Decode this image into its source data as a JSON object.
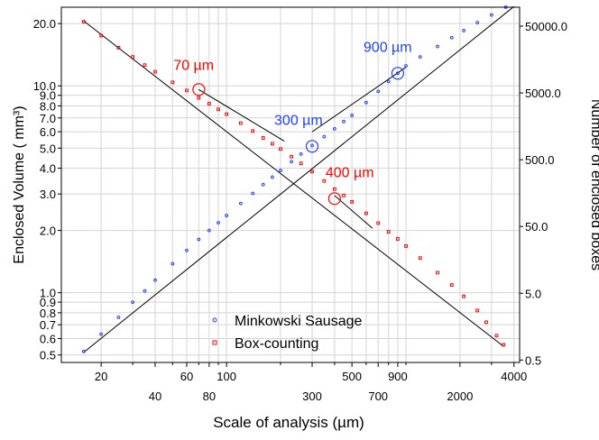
{
  "chart_data": {
    "type": "scatter",
    "xlabel": "Scale of analysis (µm)",
    "ylabel": "Enclosed Volume ( mm³)",
    "ylabel_right": "Number of enclosed boxes",
    "x_scale": "log",
    "y_scale": "log",
    "xlim": [
      12,
      4300
    ],
    "ylim": [
      0.46,
      24
    ],
    "y2lim": [
      0.46,
      96000
    ],
    "grid": true,
    "legend_position": "bottom-center",
    "x_ticks_top": [
      20,
      60,
      100,
      500,
      900,
      4000
    ],
    "x_ticks_bottom": [
      40,
      80,
      300,
      700,
      2000
    ],
    "x_minor_ticks": [
      30,
      50,
      70,
      90,
      200,
      400,
      600,
      800,
      1000,
      3000
    ],
    "x_gridlines": [
      20,
      30,
      40,
      50,
      60,
      70,
      80,
      90,
      100,
      200,
      300,
      400,
      500,
      600,
      700,
      800,
      900,
      1000,
      2000,
      3000,
      4000
    ],
    "y_ticks": [
      0.5,
      0.6,
      0.7,
      0.8,
      0.9,
      1.0,
      2.0,
      3.0,
      4.0,
      5.0,
      6.0,
      7.0,
      8.0,
      9.0,
      10.0,
      20.0
    ],
    "y_tick_labels": [
      "0.5",
      "0.6",
      "0.7",
      "0.8",
      "0.9",
      "1.0",
      "2.0",
      "3.0",
      "4.0",
      "5.0",
      "6.0",
      "7.0",
      "8.0",
      "9.0",
      "10.0",
      "20.0"
    ],
    "y2_ticks": [
      0.5,
      5.0,
      50.0,
      500.0,
      5000.0,
      50000.0
    ],
    "y2_tick_labels": [
      "0.5",
      "5.0",
      "50.0",
      "500.0",
      "5000.0",
      "50000.0"
    ],
    "series": [
      {
        "name": "Minkowski Sausage",
        "color": "#1f3fff",
        "marker": "circle",
        "axis": "left",
        "x": [
          16,
          20,
          25,
          30,
          35,
          40,
          50,
          60,
          70,
          80,
          90,
          100,
          120,
          140,
          160,
          180,
          200,
          230,
          260,
          300,
          350,
          400,
          450,
          500,
          600,
          700,
          800,
          900,
          1000,
          1200,
          1500,
          1800,
          2100,
          2500,
          3000,
          3600
        ],
        "y": [
          0.52,
          0.63,
          0.76,
          0.9,
          1.02,
          1.15,
          1.38,
          1.6,
          1.81,
          2.0,
          2.18,
          2.36,
          2.7,
          3.02,
          3.33,
          3.62,
          3.9,
          4.3,
          4.68,
          5.15,
          5.68,
          6.2,
          6.72,
          7.2,
          8.3,
          9.4,
          10.5,
          11.5,
          12.5,
          13.8,
          15.5,
          17.1,
          18.5,
          20.2,
          22.0,
          24.0
        ]
      },
      {
        "name": "Box-counting",
        "color": "#ff0000",
        "marker": "square",
        "axis": "left",
        "x": [
          16,
          20,
          25,
          30,
          35,
          40,
          50,
          60,
          70,
          80,
          90,
          100,
          120,
          140,
          160,
          180,
          200,
          230,
          260,
          300,
          350,
          400,
          450,
          500,
          600,
          700,
          800,
          900,
          1000,
          1200,
          1500,
          1800,
          2100,
          2500,
          2800,
          3200,
          3500
        ],
        "y": [
          20.4,
          17.5,
          15.3,
          13.8,
          12.6,
          11.7,
          10.4,
          9.5,
          8.75,
          8.2,
          7.7,
          7.3,
          6.6,
          6.05,
          5.6,
          5.25,
          4.95,
          4.55,
          4.22,
          3.85,
          3.47,
          3.17,
          2.95,
          2.75,
          2.42,
          2.17,
          1.97,
          1.82,
          1.68,
          1.47,
          1.25,
          1.09,
          0.96,
          0.82,
          0.72,
          0.62,
          0.56
        ]
      }
    ],
    "fit_lines": [
      {
        "color": "#000000",
        "x": [
          16,
          4000
        ],
        "y": [
          0.515,
          24.2
        ]
      },
      {
        "color": "#000000",
        "x": [
          300,
          1000
        ],
        "y": [
          6.0,
          12.3
        ]
      },
      {
        "color": "#000000",
        "x": [
          16,
          3500
        ],
        "y": [
          20.6,
          0.55
        ]
      },
      {
        "color": "#000000",
        "x": [
          70,
          210
        ],
        "y": [
          9.6,
          5.4
        ]
      },
      {
        "color": "#000000",
        "x": [
          400,
          650
        ],
        "y": [
          2.95,
          2.05
        ]
      }
    ],
    "annotations": [
      {
        "label": "70 µm",
        "color": "#ff0000",
        "x": 70,
        "y": 9.6
      },
      {
        "label": "400 µm",
        "color": "#ff0000",
        "x": 400,
        "y": 2.85
      },
      {
        "label": "300 µm",
        "color": "#1f3fff",
        "x": 300,
        "y": 5.1
      },
      {
        "label": "900 µm",
        "color": "#1f3fff",
        "x": 900,
        "y": 11.5
      }
    ]
  }
}
